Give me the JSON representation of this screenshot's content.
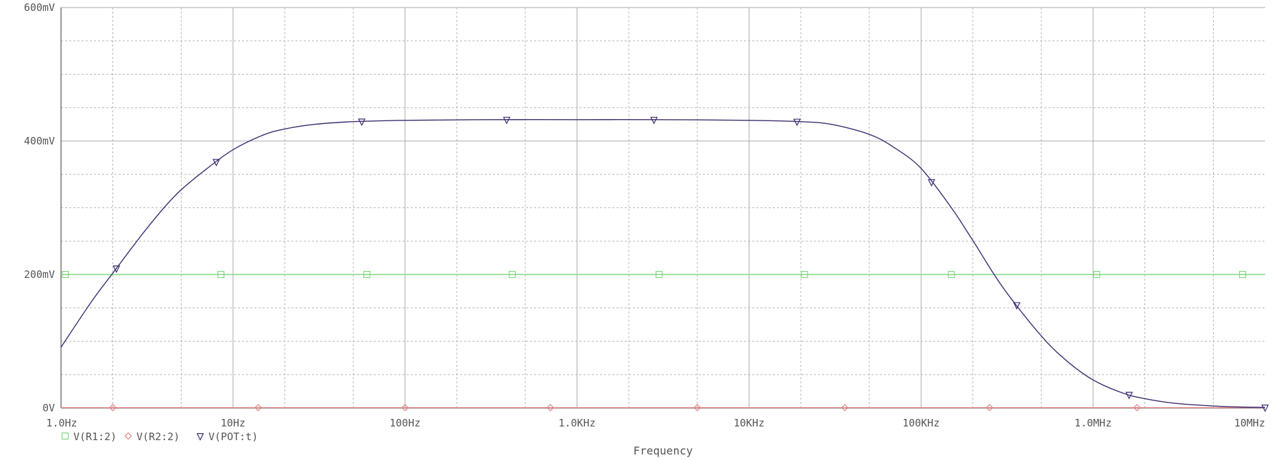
{
  "chart_data": {
    "type": "line",
    "title": "",
    "xlabel": "Frequency",
    "ylabel": "",
    "x_scale": "log",
    "xlim": [
      1,
      10000000
    ],
    "ylim": [
      0,
      600
    ],
    "y_unit": "mV",
    "grid": true,
    "legend_placement": "bottom-left",
    "x_tick_labels": [
      {
        "value": 1,
        "label": "1.0Hz"
      },
      {
        "value": 10,
        "label": "10Hz"
      },
      {
        "value": 100,
        "label": "100Hz"
      },
      {
        "value": 1000,
        "label": "1.0KHz"
      },
      {
        "value": 10000,
        "label": "10KHz"
      },
      {
        "value": 100000,
        "label": "100KHz"
      },
      {
        "value": 1000000,
        "label": "1.0MHz"
      },
      {
        "value": 10000000,
        "label": "10MHz"
      }
    ],
    "y_tick_labels": [
      {
        "value": 0,
        "label": "0V"
      },
      {
        "value": 200,
        "label": "200mV"
      },
      {
        "value": 400,
        "label": "400mV"
      },
      {
        "value": 600,
        "label": "600mV"
      }
    ],
    "series": [
      {
        "name": "V(R1:2)",
        "color": "#7fd87f",
        "marker": "square",
        "x": [
          1,
          10000000
        ],
        "y": [
          200,
          200
        ],
        "marker_x": [
          1.06,
          8.5,
          60,
          420,
          3000,
          21000,
          150000,
          1050000,
          7400000
        ]
      },
      {
        "name": "V(R2:2)",
        "color": "#e08080",
        "marker": "diamond",
        "x": [
          1,
          10000000
        ],
        "y": [
          0.5,
          0.5
        ],
        "marker_x": [
          2.0,
          14,
          100,
          700,
          5000,
          36000,
          250000,
          1800000
        ]
      },
      {
        "name": "V(POT:t)",
        "color": "#3c2a6e",
        "marker": "triangle-down",
        "x": [
          1,
          1.5,
          2,
          3,
          4,
          5,
          7,
          10,
          15,
          20,
          30,
          50,
          100,
          300,
          1000,
          3000,
          10000,
          20000,
          30000,
          50000,
          70000,
          100000,
          150000,
          200000,
          300000,
          500000,
          700000,
          1000000,
          1500000,
          2000000,
          3000000,
          5000000,
          7000000,
          10000000
        ],
        "y": [
          91,
          159,
          202,
          262,
          301,
          327,
          358,
          387,
          409,
          418,
          425,
          429,
          431,
          432,
          432,
          432,
          431,
          429,
          425,
          410,
          390,
          359,
          300,
          251,
          180,
          108,
          71,
          42,
          22,
          14,
          7,
          3,
          1.5,
          0.8
        ],
        "marker_x": [
          2.1,
          8.0,
          56,
          390,
          2800,
          19000,
          115000,
          360000,
          1620000,
          10000000
        ]
      }
    ]
  }
}
